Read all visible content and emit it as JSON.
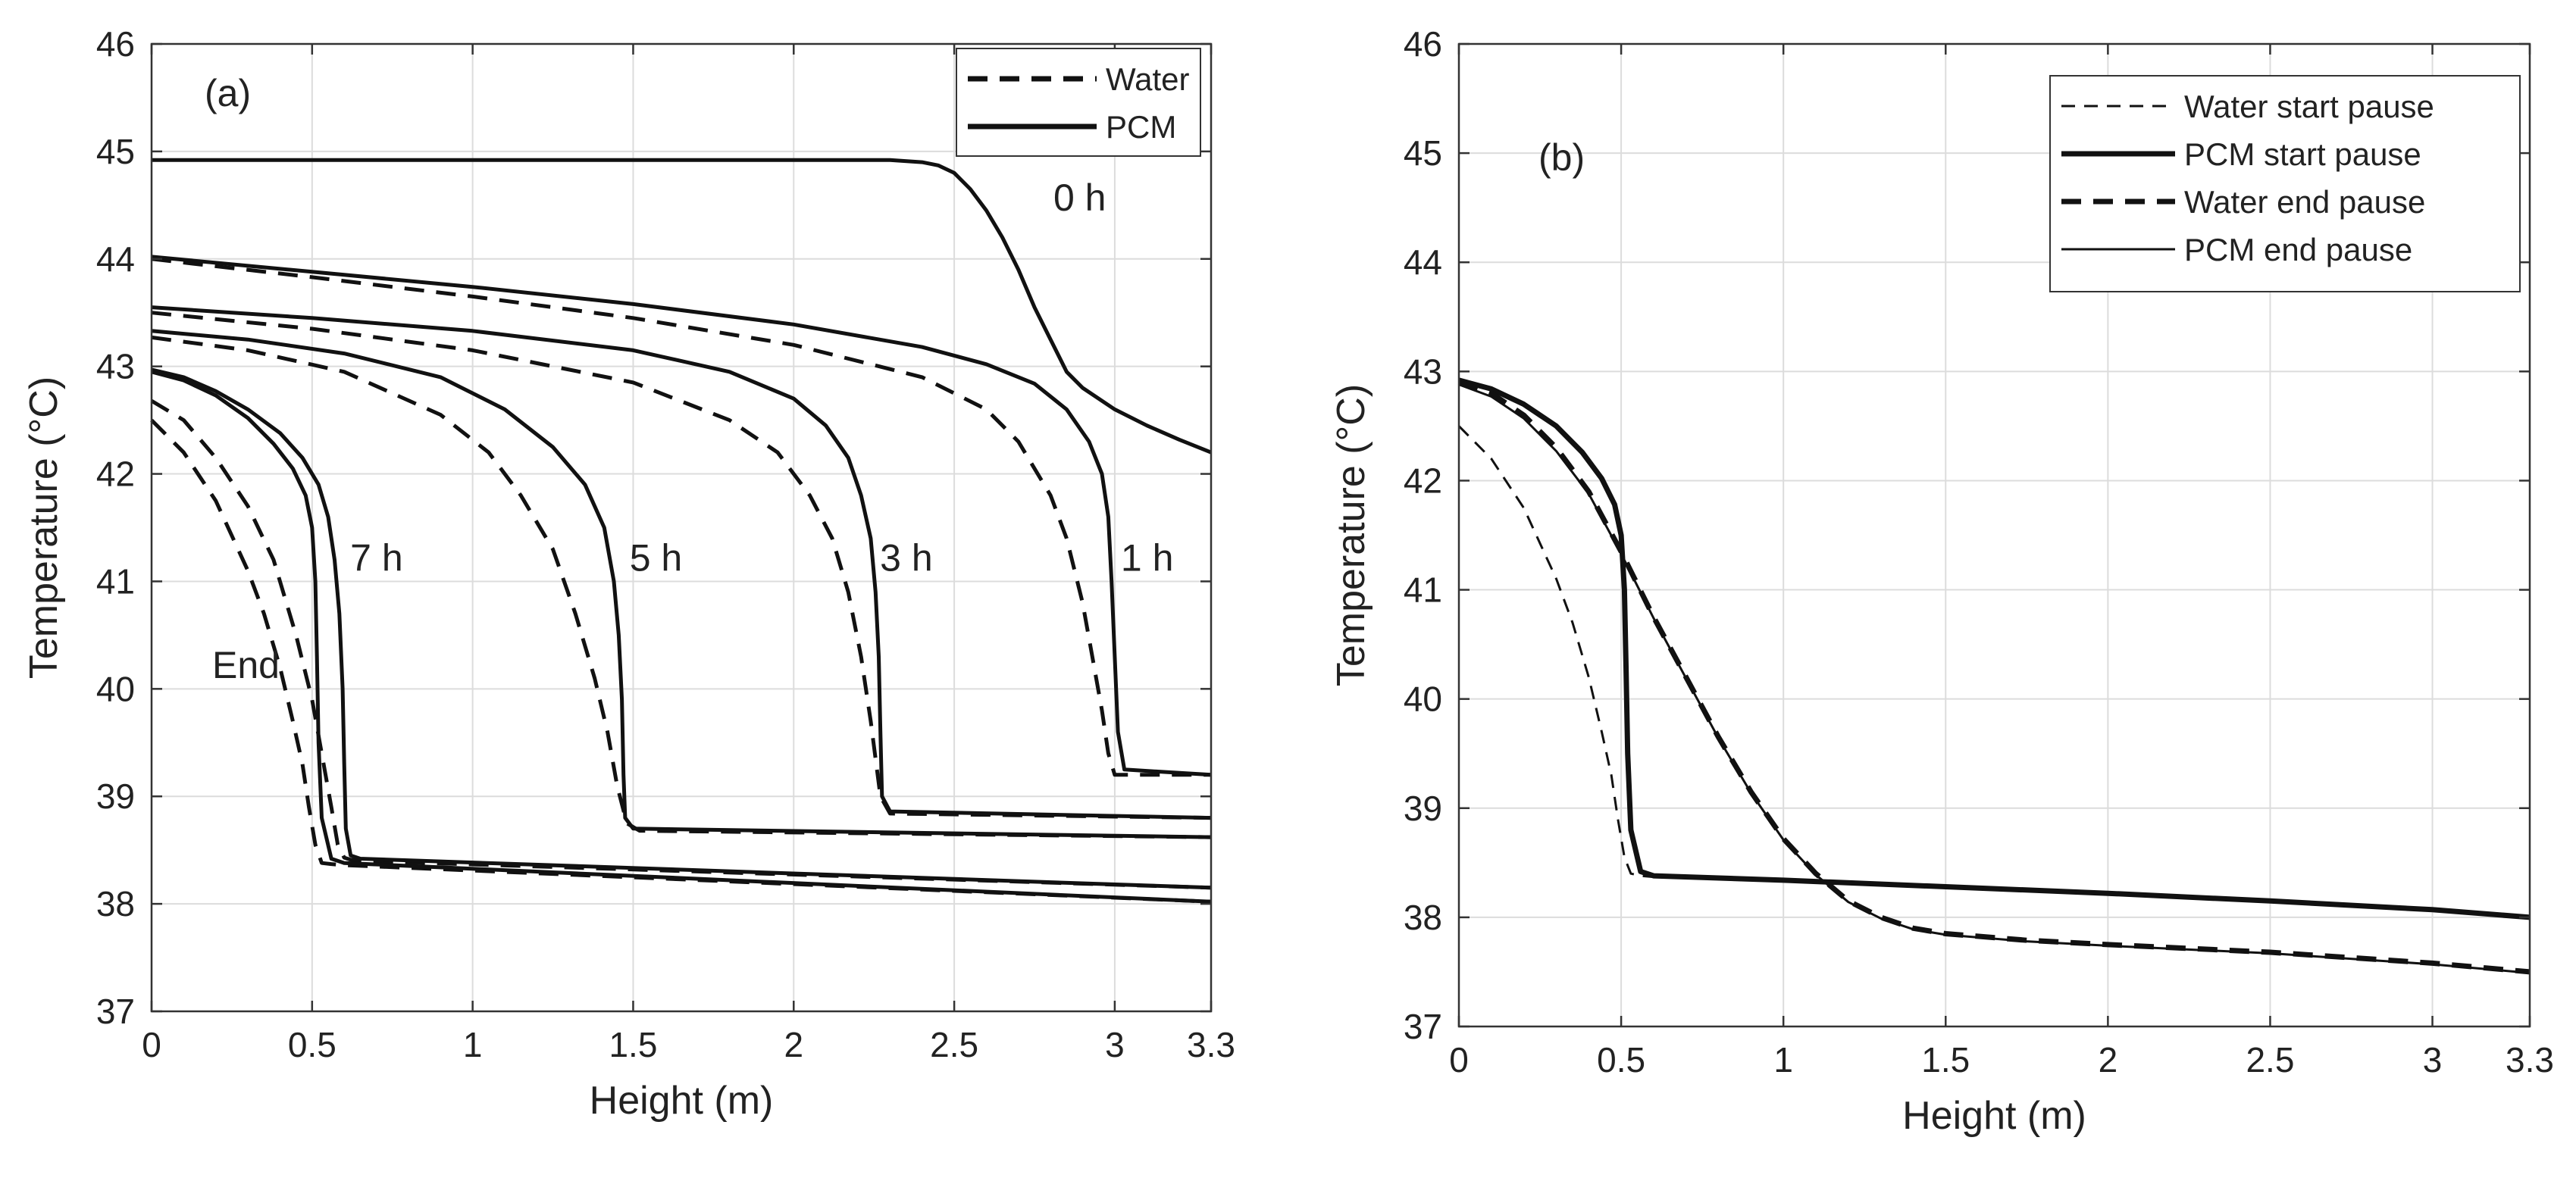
{
  "chart_data": [
    {
      "type": "line",
      "panel_label": "(a)",
      "xlabel": "Height (m)",
      "ylabel": "Temperature (°C)",
      "xlim": [
        0,
        3.3
      ],
      "ylim": [
        37,
        46
      ],
      "xticks": [
        0,
        0.5,
        1,
        1.5,
        2,
        2.5,
        3,
        3.3
      ],
      "xtick_labels": [
        "0",
        "0.5",
        "1",
        "1.5",
        "2",
        "2.5",
        "3",
        "3.3"
      ],
      "yticks": [
        37,
        38,
        39,
        40,
        41,
        42,
        43,
        44,
        45,
        46
      ],
      "ytick_labels": [
        "37",
        "38",
        "39",
        "40",
        "41",
        "42",
        "43",
        "44",
        "45",
        "46"
      ],
      "grid": true,
      "legend_position": "top-right",
      "legend": [
        {
          "label": "Water",
          "style": "dashed",
          "weight": "thick"
        },
        {
          "label": "PCM",
          "style": "solid",
          "weight": "thick"
        }
      ],
      "annotations": [
        {
          "text": "0 h",
          "x": 2.79,
          "y": 44.45
        },
        {
          "text": "1 h",
          "x": 3.0,
          "y": 41.1
        },
        {
          "text": "3 h",
          "x": 2.25,
          "y": 41.1
        },
        {
          "text": "5 h",
          "x": 1.47,
          "y": 41.1
        },
        {
          "text": "7 h",
          "x": 0.6,
          "y": 41.1
        },
        {
          "text": "End",
          "x": 0.17,
          "y": 40.1
        }
      ],
      "series": [
        {
          "name": "PCM 0 h",
          "style": "solid",
          "x": [
            0,
            0.5,
            1,
            1.5,
            2,
            2.3,
            2.4,
            2.45,
            2.5,
            2.55,
            2.6,
            2.65,
            2.7,
            2.75,
            2.8,
            2.85,
            2.9,
            3.0,
            3.1,
            3.2,
            3.3
          ],
          "y": [
            44.92,
            44.92,
            44.92,
            44.92,
            44.92,
            44.92,
            44.9,
            44.87,
            44.8,
            44.65,
            44.45,
            44.2,
            43.9,
            43.55,
            43.25,
            42.95,
            42.8,
            42.6,
            42.45,
            42.32,
            42.2
          ]
        },
        {
          "name": "Water 1 h",
          "style": "dashed",
          "x": [
            0,
            0.5,
            1,
            1.5,
            2,
            2.4,
            2.6,
            2.7,
            2.8,
            2.85,
            2.9,
            2.93,
            2.96,
            2.98,
            3.0,
            3.3
          ],
          "y": [
            44.0,
            43.83,
            43.65,
            43.45,
            43.2,
            42.9,
            42.6,
            42.3,
            41.8,
            41.4,
            40.8,
            40.3,
            39.8,
            39.4,
            39.2,
            39.2
          ]
        },
        {
          "name": "PCM 1 h",
          "style": "solid",
          "x": [
            0,
            0.5,
            1,
            1.5,
            2,
            2.4,
            2.6,
            2.75,
            2.85,
            2.92,
            2.96,
            2.98,
            2.99,
            3.0,
            3.01,
            3.03,
            3.3
          ],
          "y": [
            44.02,
            43.88,
            43.74,
            43.58,
            43.39,
            43.18,
            43.02,
            42.84,
            42.6,
            42.3,
            42.0,
            41.6,
            41.0,
            40.3,
            39.6,
            39.25,
            39.2
          ]
        },
        {
          "name": "Water 3 h",
          "style": "dashed",
          "x": [
            0,
            0.5,
            1,
            1.5,
            1.8,
            1.95,
            2.05,
            2.12,
            2.17,
            2.21,
            2.24,
            2.27,
            2.3,
            3.3
          ],
          "y": [
            43.5,
            43.35,
            43.15,
            42.85,
            42.5,
            42.2,
            41.8,
            41.4,
            40.9,
            40.3,
            39.7,
            39.0,
            38.84,
            38.8
          ]
        },
        {
          "name": "PCM 3 h",
          "style": "solid",
          "x": [
            0,
            0.5,
            1,
            1.5,
            1.8,
            2.0,
            2.1,
            2.17,
            2.21,
            2.24,
            2.255,
            2.265,
            2.27,
            2.275,
            2.3,
            3.3
          ],
          "y": [
            43.55,
            43.45,
            43.33,
            43.15,
            42.95,
            42.7,
            42.45,
            42.15,
            41.8,
            41.4,
            40.9,
            40.3,
            39.6,
            39.0,
            38.86,
            38.8
          ]
        },
        {
          "name": "Water 5 h",
          "style": "dashed",
          "x": [
            0,
            0.3,
            0.6,
            0.9,
            1.05,
            1.15,
            1.25,
            1.32,
            1.38,
            1.42,
            1.45,
            1.48,
            1.52,
            3.3
          ],
          "y": [
            43.27,
            43.15,
            42.95,
            42.55,
            42.2,
            41.8,
            41.3,
            40.7,
            40.1,
            39.6,
            39.1,
            38.75,
            38.68,
            38.62
          ]
        },
        {
          "name": "PCM 5 h",
          "style": "solid",
          "x": [
            0,
            0.3,
            0.6,
            0.9,
            1.1,
            1.25,
            1.35,
            1.41,
            1.44,
            1.455,
            1.465,
            1.47,
            1.475,
            1.5,
            3.3
          ],
          "y": [
            43.33,
            43.25,
            43.12,
            42.9,
            42.6,
            42.25,
            41.9,
            41.5,
            41.0,
            40.5,
            39.9,
            39.2,
            38.8,
            38.7,
            38.62
          ]
        },
        {
          "name": "Water 7 h",
          "style": "dashed",
          "x": [
            0,
            0.1,
            0.2,
            0.3,
            0.38,
            0.45,
            0.5,
            0.53,
            0.56,
            0.58,
            0.6,
            0.62,
            0.65,
            3.3
          ],
          "y": [
            42.68,
            42.5,
            42.15,
            41.7,
            41.2,
            40.5,
            39.9,
            39.4,
            38.9,
            38.55,
            38.43,
            38.41,
            38.4,
            38.15
          ]
        },
        {
          "name": "PCM 7 h",
          "style": "solid",
          "x": [
            0,
            0.1,
            0.2,
            0.3,
            0.4,
            0.47,
            0.52,
            0.55,
            0.57,
            0.585,
            0.595,
            0.6,
            0.605,
            0.62,
            0.65,
            3.3
          ],
          "y": [
            42.97,
            42.9,
            42.77,
            42.6,
            42.38,
            42.15,
            41.9,
            41.6,
            41.2,
            40.7,
            40.0,
            39.3,
            38.7,
            38.45,
            38.42,
            38.15
          ]
        },
        {
          "name": "Water End",
          "style": "dashed",
          "x": [
            0,
            0.1,
            0.2,
            0.3,
            0.35,
            0.4,
            0.44,
            0.47,
            0.49,
            0.51,
            0.53,
            0.56,
            0.6,
            3.3
          ],
          "y": [
            42.5,
            42.2,
            41.75,
            41.1,
            40.7,
            40.2,
            39.7,
            39.3,
            38.9,
            38.55,
            38.38,
            38.37,
            38.36,
            38.02
          ]
        },
        {
          "name": "PCM End",
          "style": "solid",
          "x": [
            0,
            0.1,
            0.2,
            0.3,
            0.38,
            0.44,
            0.48,
            0.5,
            0.51,
            0.515,
            0.52,
            0.53,
            0.56,
            0.6,
            3.3
          ],
          "y": [
            42.95,
            42.87,
            42.73,
            42.52,
            42.28,
            42.05,
            41.8,
            41.5,
            41.0,
            40.3,
            39.5,
            38.8,
            38.42,
            38.38,
            38.02
          ]
        }
      ]
    },
    {
      "type": "line",
      "panel_label": "(b)",
      "xlabel": "Height (m)",
      "ylabel": "Temperature (°C)",
      "xlim": [
        0,
        3.3
      ],
      "ylim": [
        37,
        46
      ],
      "xticks": [
        0,
        0.5,
        1,
        1.5,
        2,
        2.5,
        3,
        3.3
      ],
      "xtick_labels": [
        "0",
        "0.5",
        "1",
        "1.5",
        "2",
        "2.5",
        "3",
        "3.3"
      ],
      "yticks": [
        37,
        38,
        39,
        40,
        41,
        42,
        43,
        44,
        45,
        46
      ],
      "ytick_labels": [
        "37",
        "38",
        "39",
        "40",
        "41",
        "42",
        "43",
        "44",
        "45",
        "46"
      ],
      "grid": true,
      "legend_position": "top-right",
      "legend": [
        {
          "label": "Water start pause",
          "style": "dashed",
          "weight": "thin"
        },
        {
          "label": "PCM start pause",
          "style": "solid",
          "weight": "thick"
        },
        {
          "label": "Water end pause",
          "style": "dashed",
          "weight": "thick"
        },
        {
          "label": "PCM end pause",
          "style": "solid",
          "weight": "thin"
        }
      ],
      "series": [
        {
          "name": "Water start pause",
          "style": "dashed",
          "weight": "thin",
          "x": [
            0,
            0.1,
            0.2,
            0.3,
            0.35,
            0.4,
            0.44,
            0.47,
            0.49,
            0.51,
            0.53,
            0.56,
            0.6,
            1,
            1.5,
            2,
            2.5,
            3,
            3.3
          ],
          "y": [
            42.5,
            42.2,
            41.75,
            41.1,
            40.7,
            40.2,
            39.7,
            39.3,
            38.9,
            38.55,
            38.4,
            38.38,
            38.37,
            38.33,
            38.28,
            38.22,
            38.16,
            38.07,
            38.0
          ]
        },
        {
          "name": "PCM start pause",
          "style": "solid",
          "weight": "thick",
          "x": [
            0,
            0.1,
            0.2,
            0.3,
            0.38,
            0.44,
            0.48,
            0.5,
            0.51,
            0.515,
            0.52,
            0.53,
            0.56,
            0.6,
            1,
            1.5,
            2,
            2.5,
            3,
            3.3
          ],
          "y": [
            42.92,
            42.84,
            42.7,
            42.5,
            42.26,
            42.02,
            41.78,
            41.5,
            41.0,
            40.3,
            39.5,
            38.8,
            38.42,
            38.38,
            38.34,
            38.28,
            38.22,
            38.15,
            38.07,
            38.0
          ]
        },
        {
          "name": "Water end pause",
          "style": "dashed",
          "weight": "thick",
          "x": [
            0,
            0.1,
            0.2,
            0.3,
            0.4,
            0.5,
            0.6,
            0.7,
            0.8,
            0.9,
            1.0,
            1.1,
            1.2,
            1.3,
            1.4,
            1.5,
            1.75,
            2,
            2.5,
            3,
            3.3
          ],
          "y": [
            42.9,
            42.8,
            42.6,
            42.3,
            41.9,
            41.35,
            40.75,
            40.2,
            39.65,
            39.15,
            38.72,
            38.4,
            38.15,
            38.0,
            37.9,
            37.85,
            37.79,
            37.75,
            37.68,
            37.58,
            37.5
          ]
        },
        {
          "name": "PCM end pause",
          "style": "solid",
          "weight": "thin",
          "x": [
            0,
            0.1,
            0.2,
            0.3,
            0.4,
            0.5,
            0.6,
            0.7,
            0.8,
            0.9,
            1.0,
            1.1,
            1.2,
            1.3,
            1.4,
            1.5,
            1.75,
            2,
            2.5,
            3,
            3.3
          ],
          "y": [
            42.88,
            42.77,
            42.57,
            42.27,
            41.88,
            41.33,
            40.74,
            40.19,
            39.64,
            39.14,
            38.71,
            38.39,
            38.14,
            37.99,
            37.89,
            37.84,
            37.78,
            37.74,
            37.67,
            37.57,
            37.49
          ]
        }
      ]
    }
  ]
}
